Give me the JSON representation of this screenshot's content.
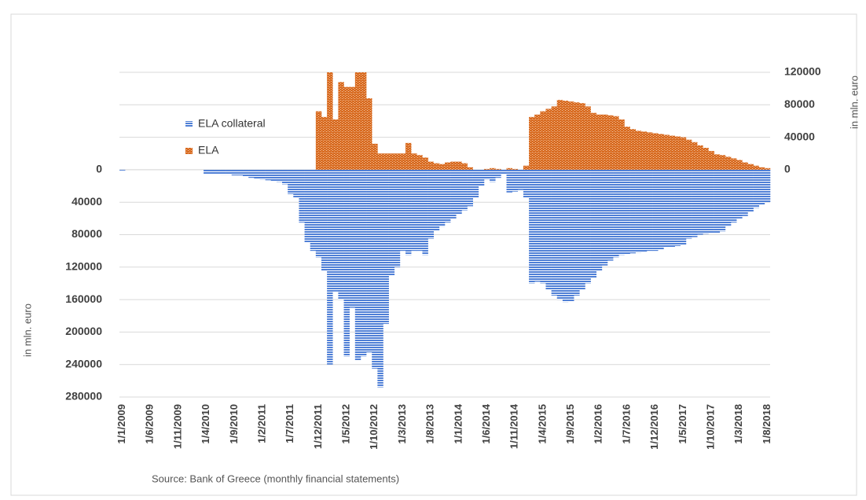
{
  "chart_data": {
    "type": "bar",
    "categories": [
      "1/1/2009",
      null,
      null,
      null,
      null,
      "1/6/2009",
      null,
      null,
      null,
      null,
      "1/11/2009",
      null,
      null,
      null,
      null,
      "1/4/2010",
      null,
      null,
      null,
      null,
      "1/9/2010",
      null,
      null,
      null,
      null,
      "1/2/2011",
      null,
      null,
      null,
      null,
      "1/7/2011",
      null,
      null,
      null,
      null,
      "1/12/2011",
      null,
      null,
      null,
      null,
      "1/5/2012",
      null,
      null,
      null,
      null,
      "1/10/2012",
      null,
      null,
      null,
      null,
      "1/3/2013",
      null,
      null,
      null,
      null,
      "1/8/2013",
      null,
      null,
      null,
      null,
      "1/1/2014",
      null,
      null,
      null,
      null,
      "1/6/2014",
      null,
      null,
      null,
      null,
      "1/11/2014",
      null,
      null,
      null,
      null,
      "1/4/2015",
      null,
      null,
      null,
      null,
      "1/9/2015",
      null,
      null,
      null,
      null,
      "1/2/2016",
      null,
      null,
      null,
      null,
      "1/7/2016",
      null,
      null,
      null,
      null,
      "1/12/2016",
      null,
      null,
      null,
      null,
      "1/5/2017",
      null,
      null,
      null,
      null,
      "1/10/2017",
      null,
      null,
      null,
      null,
      "1/3/2018",
      null,
      null,
      null,
      null,
      "1/8/2018"
    ],
    "series": [
      {
        "name": "ELA collateral",
        "color": "#4f7fd6",
        "axis": "y",
        "values": [
          1000,
          0,
          0,
          0,
          0,
          0,
          0,
          0,
          0,
          0,
          0,
          0,
          0,
          0,
          0,
          5000,
          5000,
          5000,
          6000,
          6000,
          7000,
          7000,
          8000,
          10000,
          11000,
          12000,
          13000,
          14000,
          15000,
          18000,
          30000,
          35000,
          65000,
          90000,
          100000,
          108000,
          125000,
          240000,
          150000,
          160000,
          230000,
          170000,
          235000,
          230000,
          225000,
          245000,
          268000,
          190000,
          130000,
          120000,
          100000,
          105000,
          100000,
          100000,
          105000,
          85000,
          75000,
          70000,
          65000,
          60000,
          55000,
          50000,
          45000,
          35000,
          20000,
          12000,
          15000,
          10000,
          5000,
          28000,
          27000,
          25000,
          35000,
          140000,
          138000,
          140000,
          148000,
          155000,
          160000,
          163000,
          162000,
          155000,
          148000,
          140000,
          133000,
          125000,
          118000,
          112000,
          108000,
          105000,
          104000,
          103000,
          102000,
          101000,
          100000,
          100000,
          98000,
          96000,
          95000,
          94000,
          93000,
          85000,
          83000,
          80000,
          79000,
          78000,
          78000,
          76000,
          70000,
          65000,
          60000,
          57000,
          52000,
          47000,
          43000,
          40000
        ]
      },
      {
        "name": "ELA",
        "color": "#d86a1f",
        "axis": "y2",
        "values": [
          0,
          0,
          0,
          0,
          0,
          0,
          0,
          0,
          0,
          0,
          0,
          0,
          0,
          0,
          0,
          0,
          0,
          0,
          0,
          0,
          0,
          0,
          0,
          0,
          0,
          0,
          0,
          0,
          0,
          0,
          0,
          0,
          0,
          0,
          0,
          72000,
          65000,
          120000,
          62000,
          108000,
          102000,
          102000,
          120000,
          120000,
          88000,
          32000,
          20000,
          20000,
          20000,
          20000,
          20000,
          33000,
          20000,
          18000,
          15000,
          10000,
          8000,
          7000,
          9000,
          10000,
          10000,
          8000,
          3000,
          0,
          0,
          1000,
          2000,
          1000,
          0,
          2000,
          1000,
          0,
          5000,
          65000,
          68000,
          72000,
          75000,
          78000,
          86000,
          85000,
          84000,
          83000,
          82000,
          78000,
          70000,
          68000,
          68000,
          67000,
          66000,
          62000,
          53000,
          50000,
          48000,
          47000,
          46000,
          45000,
          44000,
          43000,
          42000,
          41000,
          40000,
          37000,
          34000,
          30000,
          27000,
          23000,
          19000,
          18000,
          16000,
          14000,
          12000,
          9000,
          7000,
          5000,
          3000,
          2000
        ]
      }
    ],
    "ylabel": "in mln. euro",
    "y2label": "in mln. euro",
    "ylim": [
      -120000,
      280000
    ],
    "y_inverted": true,
    "yticks": [
      0,
      40000,
      80000,
      120000,
      160000,
      200000,
      240000,
      280000
    ],
    "y2lim": [
      -280000,
      120000
    ],
    "y2ticks": [
      0,
      40000,
      80000,
      120000
    ],
    "grid": true,
    "source": "Source: Bank of Greece (monthly financial statements)"
  }
}
